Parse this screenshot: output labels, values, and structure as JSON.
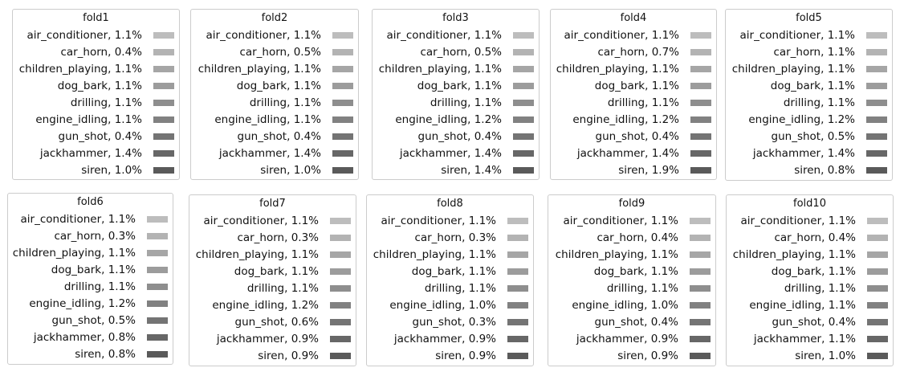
{
  "chart_data": [
    {
      "type": "pie",
      "title": "fold1",
      "categories": [
        "air_conditioner",
        "car_horn",
        "children_playing",
        "dog_bark",
        "drilling",
        "engine_idling",
        "gun_shot",
        "jackhammer",
        "siren"
      ],
      "values": [
        1.1,
        0.4,
        1.1,
        1.1,
        1.1,
        1.1,
        0.4,
        1.4,
        1.0
      ],
      "labels": [
        "air_conditioner, 1.1%",
        "car_horn, 0.4%",
        "children_playing, 1.1%",
        "dog_bark, 1.1%",
        "drilling, 1.1%",
        "engine_idling, 1.1%",
        "gun_shot, 0.4%",
        "jackhammer, 1.4%",
        "siren, 1.0%"
      ]
    },
    {
      "type": "pie",
      "title": "fold2",
      "categories": [
        "air_conditioner",
        "car_horn",
        "children_playing",
        "dog_bark",
        "drilling",
        "engine_idling",
        "gun_shot",
        "jackhammer",
        "siren"
      ],
      "values": [
        1.1,
        0.5,
        1.1,
        1.1,
        1.1,
        1.1,
        0.4,
        1.4,
        1.0
      ],
      "labels": [
        "air_conditioner, 1.1%",
        "car_horn, 0.5%",
        "children_playing, 1.1%",
        "dog_bark, 1.1%",
        "drilling, 1.1%",
        "engine_idling, 1.1%",
        "gun_shot, 0.4%",
        "jackhammer, 1.4%",
        "siren, 1.0%"
      ]
    },
    {
      "type": "pie",
      "title": "fold3",
      "categories": [
        "air_conditioner",
        "car_horn",
        "children_playing",
        "dog_bark",
        "drilling",
        "engine_idling",
        "gun_shot",
        "jackhammer",
        "siren"
      ],
      "values": [
        1.1,
        0.5,
        1.1,
        1.1,
        1.1,
        1.2,
        0.4,
        1.4,
        1.4
      ],
      "labels": [
        "air_conditioner, 1.1%",
        "car_horn, 0.5%",
        "children_playing, 1.1%",
        "dog_bark, 1.1%",
        "drilling, 1.1%",
        "engine_idling, 1.2%",
        "gun_shot, 0.4%",
        "jackhammer, 1.4%",
        "siren, 1.4%"
      ]
    },
    {
      "type": "pie",
      "title": "fold4",
      "categories": [
        "air_conditioner",
        "car_horn",
        "children_playing",
        "dog_bark",
        "drilling",
        "engine_idling",
        "gun_shot",
        "jackhammer",
        "siren"
      ],
      "values": [
        1.1,
        0.7,
        1.1,
        1.1,
        1.1,
        1.2,
        0.4,
        1.4,
        1.9
      ],
      "labels": [
        "air_conditioner, 1.1%",
        "car_horn, 0.7%",
        "children_playing, 1.1%",
        "dog_bark, 1.1%",
        "drilling, 1.1%",
        "engine_idling, 1.2%",
        "gun_shot, 0.4%",
        "jackhammer, 1.4%",
        "siren, 1.9%"
      ]
    },
    {
      "type": "pie",
      "title": "fold5",
      "categories": [
        "air_conditioner",
        "car_horn",
        "children_playing",
        "dog_bark",
        "drilling",
        "engine_idling",
        "gun_shot",
        "jackhammer",
        "siren"
      ],
      "values": [
        1.1,
        1.1,
        1.1,
        1.1,
        1.1,
        1.2,
        0.5,
        1.4,
        0.8
      ],
      "labels": [
        "air_conditioner, 1.1%",
        "car_horn, 1.1%",
        "children_playing, 1.1%",
        "dog_bark, 1.1%",
        "drilling, 1.1%",
        "engine_idling, 1.2%",
        "gun_shot, 0.5%",
        "jackhammer, 1.4%",
        "siren, 0.8%"
      ]
    },
    {
      "type": "pie",
      "title": "fold6",
      "categories": [
        "air_conditioner",
        "car_horn",
        "children_playing",
        "dog_bark",
        "drilling",
        "engine_idling",
        "gun_shot",
        "jackhammer",
        "siren"
      ],
      "values": [
        1.1,
        0.3,
        1.1,
        1.1,
        1.1,
        1.2,
        0.5,
        0.8,
        0.8
      ],
      "labels": [
        "air_conditioner, 1.1%",
        "car_horn, 0.3%",
        "children_playing, 1.1%",
        "dog_bark, 1.1%",
        "drilling, 1.1%",
        "engine_idling, 1.2%",
        "gun_shot, 0.5%",
        "jackhammer, 0.8%",
        "siren, 0.8%"
      ]
    },
    {
      "type": "pie",
      "title": "fold7",
      "categories": [
        "air_conditioner",
        "car_horn",
        "children_playing",
        "dog_bark",
        "drilling",
        "engine_idling",
        "gun_shot",
        "jackhammer",
        "siren"
      ],
      "values": [
        1.1,
        0.3,
        1.1,
        1.1,
        1.1,
        1.2,
        0.6,
        0.9,
        0.9
      ],
      "labels": [
        "air_conditioner, 1.1%",
        "car_horn, 0.3%",
        "children_playing, 1.1%",
        "dog_bark, 1.1%",
        "drilling, 1.1%",
        "engine_idling, 1.2%",
        "gun_shot, 0.6%",
        "jackhammer, 0.9%",
        "siren, 0.9%"
      ]
    },
    {
      "type": "pie",
      "title": "fold8",
      "categories": [
        "air_conditioner",
        "car_horn",
        "children_playing",
        "dog_bark",
        "drilling",
        "engine_idling",
        "gun_shot",
        "jackhammer",
        "siren"
      ],
      "values": [
        1.1,
        0.3,
        1.1,
        1.1,
        1.1,
        1.0,
        0.3,
        0.9,
        0.9
      ],
      "labels": [
        "air_conditioner, 1.1%",
        "car_horn, 0.3%",
        "children_playing, 1.1%",
        "dog_bark, 1.1%",
        "drilling, 1.1%",
        "engine_idling, 1.0%",
        "gun_shot, 0.3%",
        "jackhammer, 0.9%",
        "siren, 0.9%"
      ]
    },
    {
      "type": "pie",
      "title": "fold9",
      "categories": [
        "air_conditioner",
        "car_horn",
        "children_playing",
        "dog_bark",
        "drilling",
        "engine_idling",
        "gun_shot",
        "jackhammer",
        "siren"
      ],
      "values": [
        1.1,
        0.4,
        1.1,
        1.1,
        1.1,
        1.0,
        0.4,
        0.9,
        0.9
      ],
      "labels": [
        "air_conditioner, 1.1%",
        "car_horn, 0.4%",
        "children_playing, 1.1%",
        "dog_bark, 1.1%",
        "drilling, 1.1%",
        "engine_idling, 1.0%",
        "gun_shot, 0.4%",
        "jackhammer, 0.9%",
        "siren, 0.9%"
      ]
    },
    {
      "type": "pie",
      "title": "fold10",
      "categories": [
        "air_conditioner",
        "car_horn",
        "children_playing",
        "dog_bark",
        "drilling",
        "engine_idling",
        "gun_shot",
        "jackhammer",
        "siren"
      ],
      "values": [
        1.1,
        0.4,
        1.1,
        1.1,
        1.1,
        1.1,
        0.4,
        1.1,
        1.0
      ],
      "labels": [
        "air_conditioner, 1.1%",
        "car_horn, 0.4%",
        "children_playing, 1.1%",
        "dog_bark, 1.1%",
        "drilling, 1.1%",
        "engine_idling, 1.1%",
        "gun_shot, 0.4%",
        "jackhammer, 1.1%",
        "siren, 1.0%"
      ]
    }
  ],
  "colors": [
    "#bdbdbd",
    "#b3b3b3",
    "#a6a6a6",
    "#9c9c9c",
    "#8e8e8e",
    "#818181",
    "#747474",
    "#676767",
    "#5a5a5a"
  ]
}
